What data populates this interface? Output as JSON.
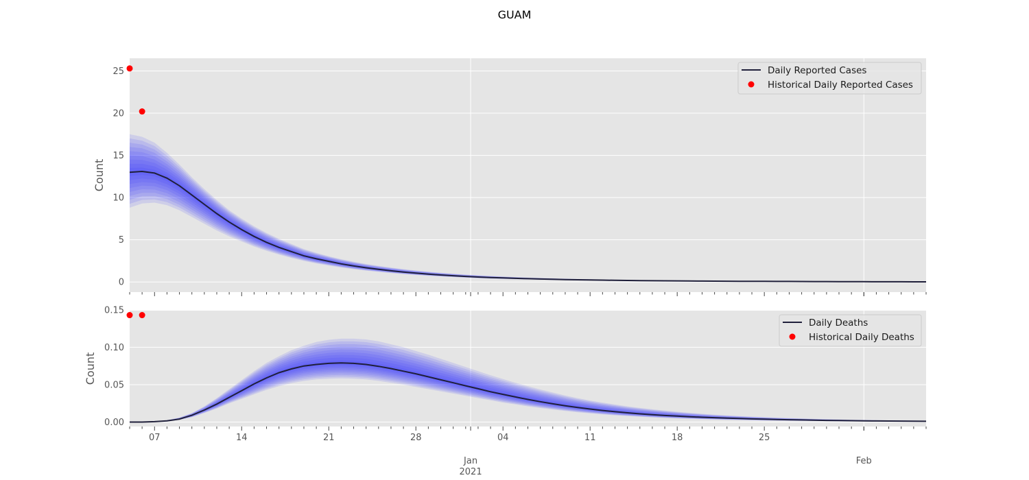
{
  "figure": {
    "title": "GUAM"
  },
  "chart_data": [
    {
      "type": "line",
      "ylabel": "Count",
      "ylim": [
        -1.2,
        26.5
      ],
      "yticks": [
        0,
        5,
        10,
        15,
        20,
        25
      ],
      "grid": true,
      "legend_placement": "top-right",
      "series": [
        {
          "name": "Daily Reported Cases",
          "kind": "line",
          "x": [
            0,
            1,
            2,
            3,
            4,
            5,
            6,
            7,
            8,
            9,
            10,
            11,
            12,
            13,
            14,
            15,
            16,
            17,
            18,
            19,
            20,
            21,
            22,
            23,
            24,
            25,
            26,
            27,
            28,
            29,
            30,
            31,
            32,
            33,
            34,
            35,
            36,
            37,
            38,
            39,
            40,
            41,
            42,
            43,
            44,
            45,
            46,
            47,
            48,
            49,
            50,
            51,
            52,
            53,
            54,
            55,
            56,
            57,
            58,
            59,
            60,
            61,
            62,
            63,
            64
          ],
          "y": [
            13.0,
            13.1,
            12.9,
            12.3,
            11.4,
            10.3,
            9.2,
            8.1,
            7.1,
            6.2,
            5.4,
            4.7,
            4.1,
            3.6,
            3.1,
            2.75,
            2.45,
            2.15,
            1.9,
            1.68,
            1.5,
            1.33,
            1.18,
            1.05,
            0.93,
            0.83,
            0.74,
            0.66,
            0.59,
            0.53,
            0.48,
            0.43,
            0.39,
            0.35,
            0.32,
            0.29,
            0.26,
            0.24,
            0.22,
            0.2,
            0.18,
            0.16,
            0.15,
            0.14,
            0.13,
            0.12,
            0.11,
            0.1,
            0.09,
            0.085,
            0.08,
            0.075,
            0.07,
            0.065,
            0.06,
            0.055,
            0.05,
            0.045,
            0.04,
            0.035,
            0.03,
            0.03,
            0.025,
            0.02,
            0.02
          ]
        },
        {
          "name": "Historical Daily Reported Cases",
          "kind": "scatter",
          "x": [
            0,
            1
          ],
          "y": [
            25.3,
            20.2
          ]
        }
      ],
      "band": {
        "kind": "percentile-fan",
        "color": "#3333ff",
        "upper": [
          17.5,
          17.2,
          16.5,
          15.3,
          13.9,
          12.4,
          11.0,
          9.7,
          8.5,
          7.5,
          6.6,
          5.8,
          5.1,
          4.5,
          3.9,
          3.45,
          3.05,
          2.7,
          2.4,
          2.13,
          1.9,
          1.7,
          1.52,
          1.36,
          1.22,
          1.09,
          0.98,
          0.88,
          0.79,
          0.71,
          0.64,
          0.58,
          0.52,
          0.47,
          0.43,
          0.39,
          0.35,
          0.32,
          0.29,
          0.26,
          0.24,
          0.22,
          0.2,
          0.18,
          0.17,
          0.15,
          0.14,
          0.13,
          0.12,
          0.11,
          0.1,
          0.095,
          0.09,
          0.085,
          0.08,
          0.075,
          0.07,
          0.065,
          0.06,
          0.055,
          0.05,
          0.045,
          0.04,
          0.035,
          0.03
        ],
        "lower": [
          8.8,
          9.3,
          9.4,
          9.1,
          8.5,
          7.7,
          6.9,
          6.1,
          5.4,
          4.8,
          4.2,
          3.7,
          3.25,
          2.85,
          2.5,
          2.2,
          1.95,
          1.72,
          1.52,
          1.35,
          1.2,
          1.06,
          0.94,
          0.83,
          0.74,
          0.66,
          0.59,
          0.52,
          0.46,
          0.41,
          0.37,
          0.33,
          0.3,
          0.27,
          0.24,
          0.22,
          0.2,
          0.18,
          0.16,
          0.14,
          0.13,
          0.12,
          0.11,
          0.1,
          0.09,
          0.085,
          0.08,
          0.075,
          0.07,
          0.065,
          0.06,
          0.055,
          0.05,
          0.045,
          0.04,
          0.035,
          0.03,
          0.03,
          0.025,
          0.02,
          0.02,
          0.015,
          0.015,
          0.01,
          0.01
        ]
      }
    },
    {
      "type": "line",
      "ylabel": "Count",
      "ylim": [
        -0.006,
        0.149
      ],
      "yticks": [
        "0.00",
        "0.05",
        "0.10",
        "0.15"
      ],
      "grid": true,
      "legend_placement": "top-right",
      "series": [
        {
          "name": "Daily Deaths",
          "kind": "line",
          "x": [
            0,
            1,
            2,
            3,
            4,
            5,
            6,
            7,
            8,
            9,
            10,
            11,
            12,
            13,
            14,
            15,
            16,
            17,
            18,
            19,
            20,
            21,
            22,
            23,
            24,
            25,
            26,
            27,
            28,
            29,
            30,
            31,
            32,
            33,
            34,
            35,
            36,
            37,
            38,
            39,
            40,
            41,
            42,
            43,
            44,
            45,
            46,
            47,
            48,
            49,
            50,
            51,
            52,
            53,
            54,
            55,
            56,
            57,
            58,
            59,
            60,
            61,
            62,
            63,
            64
          ],
          "y": [
            0.0,
            0.0,
            0.0005,
            0.0015,
            0.004,
            0.009,
            0.016,
            0.024,
            0.033,
            0.042,
            0.051,
            0.059,
            0.066,
            0.071,
            0.075,
            0.077,
            0.0785,
            0.079,
            0.0785,
            0.077,
            0.0745,
            0.0715,
            0.068,
            0.0645,
            0.0605,
            0.0565,
            0.0525,
            0.0485,
            0.0445,
            0.0405,
            0.037,
            0.0335,
            0.0302,
            0.0272,
            0.0244,
            0.0218,
            0.0195,
            0.0174,
            0.0155,
            0.0138,
            0.0123,
            0.011,
            0.0098,
            0.0088,
            0.0079,
            0.0071,
            0.0064,
            0.0058,
            0.0052,
            0.0047,
            0.0042,
            0.0038,
            0.0034,
            0.0031,
            0.0028,
            0.0025,
            0.0022,
            0.002,
            0.0018,
            0.0016,
            0.0014,
            0.0013,
            0.0012,
            0.0011,
            0.001
          ]
        },
        {
          "name": "Historical Daily Deaths",
          "kind": "scatter",
          "x": [
            0,
            1
          ],
          "y": [
            0.143,
            0.143
          ]
        }
      ],
      "band": {
        "kind": "percentile-fan",
        "color": "#3333ff",
        "upper": [
          0.0,
          0.0,
          0.0008,
          0.0025,
          0.006,
          0.012,
          0.021,
          0.032,
          0.044,
          0.056,
          0.068,
          0.079,
          0.088,
          0.096,
          0.102,
          0.107,
          0.11,
          0.1115,
          0.1115,
          0.1105,
          0.108,
          0.104,
          0.1,
          0.095,
          0.09,
          0.0845,
          0.079,
          0.0735,
          0.068,
          0.0625,
          0.0575,
          0.0525,
          0.048,
          0.0435,
          0.0395,
          0.0355,
          0.032,
          0.0288,
          0.026,
          0.0234,
          0.021,
          0.0189,
          0.017,
          0.0153,
          0.0137,
          0.0123,
          0.011,
          0.0099,
          0.0089,
          0.008,
          0.0072,
          0.0065,
          0.0058,
          0.0052,
          0.0047,
          0.0042,
          0.0038,
          0.0034,
          0.0031,
          0.0028,
          0.0025,
          0.0023,
          0.0021,
          0.0019,
          0.0017
        ],
        "lower": [
          0.0,
          0.0,
          0.0003,
          0.001,
          0.003,
          0.0065,
          0.012,
          0.018,
          0.025,
          0.031,
          0.037,
          0.043,
          0.048,
          0.052,
          0.055,
          0.057,
          0.058,
          0.0585,
          0.058,
          0.057,
          0.055,
          0.0525,
          0.05,
          0.047,
          0.044,
          0.041,
          0.038,
          0.035,
          0.032,
          0.029,
          0.026,
          0.0235,
          0.021,
          0.0188,
          0.0167,
          0.0148,
          0.0131,
          0.0116,
          0.0102,
          0.009,
          0.0079,
          0.007,
          0.0062,
          0.0055,
          0.0048,
          0.0043,
          0.0038,
          0.0034,
          0.003,
          0.0027,
          0.0024,
          0.0021,
          0.0019,
          0.0017,
          0.0015,
          0.0013,
          0.0012,
          0.0011,
          0.001,
          0.0009,
          0.0008,
          0.0007,
          0.0006,
          0.0006,
          0.0005
        ]
      }
    }
  ],
  "x_axis": {
    "x_min": 0,
    "x_max": 64,
    "major_ticks": [
      {
        "x": 2,
        "label": "07"
      },
      {
        "x": 9,
        "label": "14"
      },
      {
        "x": 16,
        "label": "21"
      },
      {
        "x": 23,
        "label": "28"
      },
      {
        "x": 30,
        "label": "04"
      },
      {
        "x": 37,
        "label": "11"
      },
      {
        "x": 44,
        "label": "18"
      },
      {
        "x": 51,
        "label": "25"
      }
    ],
    "month_ticks": [
      {
        "x": 27.4,
        "label": "Jan",
        "sublabel": "2021"
      },
      {
        "x": 59,
        "label": "Feb",
        "sublabel": ""
      }
    ]
  }
}
